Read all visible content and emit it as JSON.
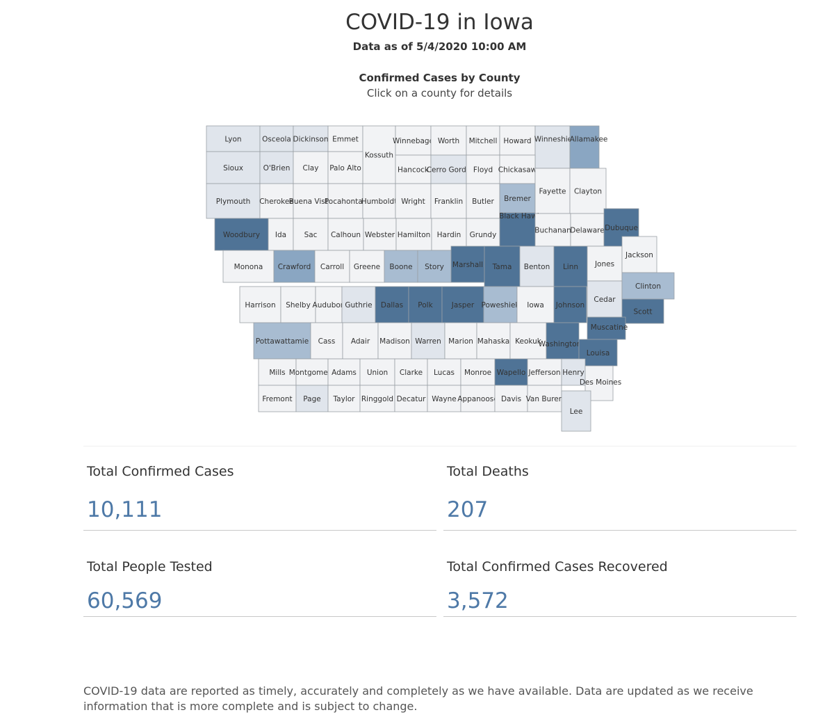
{
  "header": {
    "title": "COVID-19 in Iowa",
    "as_of": "Data as of 5/4/2020 10:00 AM"
  },
  "map": {
    "title": "Confirmed Cases by County",
    "subtitle": "Click on a county for details",
    "colors": {
      "none": "#f2f3f5",
      "low": "#e0e5ec",
      "medium": "#a8bcd1",
      "high": "#8aa6c2",
      "highest": "#4f7396",
      "stroke": "#9aa0a6"
    },
    "counties": [
      {
        "name": "Lyon",
        "level": "low"
      },
      {
        "name": "Osceola",
        "level": "low"
      },
      {
        "name": "Dickinson",
        "level": "low"
      },
      {
        "name": "Emmet",
        "level": "none"
      },
      {
        "name": "Kossuth",
        "level": "none"
      },
      {
        "name": "Winnebago",
        "level": "none"
      },
      {
        "name": "Worth",
        "level": "none"
      },
      {
        "name": "Mitchell",
        "level": "none"
      },
      {
        "name": "Howard",
        "level": "none"
      },
      {
        "name": "Winneshiek",
        "level": "low"
      },
      {
        "name": "Allamakee",
        "level": "high"
      },
      {
        "name": "Sioux",
        "level": "low"
      },
      {
        "name": "O'Brien",
        "level": "low"
      },
      {
        "name": "Clay",
        "level": "none"
      },
      {
        "name": "Palo Alto",
        "level": "none"
      },
      {
        "name": "Hancock",
        "level": "none"
      },
      {
        "name": "Cerro Gordo",
        "level": "low"
      },
      {
        "name": "Floyd",
        "level": "none"
      },
      {
        "name": "Chickasaw",
        "level": "none"
      },
      {
        "name": "Plymouth",
        "level": "low"
      },
      {
        "name": "Cherokee",
        "level": "none"
      },
      {
        "name": "Buena Vista",
        "level": "none"
      },
      {
        "name": "Pocahontas",
        "level": "none"
      },
      {
        "name": "Humboldt",
        "level": "none"
      },
      {
        "name": "Wright",
        "level": "none"
      },
      {
        "name": "Franklin",
        "level": "none"
      },
      {
        "name": "Butler",
        "level": "none"
      },
      {
        "name": "Bremer",
        "level": "medium"
      },
      {
        "name": "Fayette",
        "level": "none"
      },
      {
        "name": "Clayton",
        "level": "none"
      },
      {
        "name": "Woodbury",
        "level": "highest"
      },
      {
        "name": "Ida",
        "level": "none"
      },
      {
        "name": "Sac",
        "level": "none"
      },
      {
        "name": "Calhoun",
        "level": "none"
      },
      {
        "name": "Webster",
        "level": "none"
      },
      {
        "name": "Hamilton",
        "level": "none"
      },
      {
        "name": "Hardin",
        "level": "none"
      },
      {
        "name": "Grundy",
        "level": "none"
      },
      {
        "name": "Black Hawk",
        "level": "highest"
      },
      {
        "name": "Buchanan",
        "level": "none"
      },
      {
        "name": "Delaware",
        "level": "none"
      },
      {
        "name": "Dubuque",
        "level": "highest"
      },
      {
        "name": "Monona",
        "level": "none"
      },
      {
        "name": "Crawford",
        "level": "high"
      },
      {
        "name": "Carroll",
        "level": "none"
      },
      {
        "name": "Greene",
        "level": "none"
      },
      {
        "name": "Boone",
        "level": "medium"
      },
      {
        "name": "Story",
        "level": "medium"
      },
      {
        "name": "Marshall",
        "level": "highest"
      },
      {
        "name": "Tama",
        "level": "highest"
      },
      {
        "name": "Benton",
        "level": "low"
      },
      {
        "name": "Linn",
        "level": "highest"
      },
      {
        "name": "Jones",
        "level": "none"
      },
      {
        "name": "Jackson",
        "level": "none"
      },
      {
        "name": "Harrison",
        "level": "none"
      },
      {
        "name": "Shelby",
        "level": "none"
      },
      {
        "name": "Audubon",
        "level": "none"
      },
      {
        "name": "Guthrie",
        "level": "low"
      },
      {
        "name": "Dallas",
        "level": "highest"
      },
      {
        "name": "Polk",
        "level": "highest"
      },
      {
        "name": "Jasper",
        "level": "highest"
      },
      {
        "name": "Poweshiek",
        "level": "medium"
      },
      {
        "name": "Iowa",
        "level": "none"
      },
      {
        "name": "Johnson",
        "level": "highest"
      },
      {
        "name": "Cedar",
        "level": "low"
      },
      {
        "name": "Clinton",
        "level": "medium"
      },
      {
        "name": "Scott",
        "level": "highest"
      },
      {
        "name": "Muscatine",
        "level": "highest"
      },
      {
        "name": "Pottawattamie",
        "level": "medium"
      },
      {
        "name": "Cass",
        "level": "none"
      },
      {
        "name": "Adair",
        "level": "none"
      },
      {
        "name": "Madison",
        "level": "none"
      },
      {
        "name": "Warren",
        "level": "low"
      },
      {
        "name": "Marion",
        "level": "none"
      },
      {
        "name": "Mahaska",
        "level": "none"
      },
      {
        "name": "Keokuk",
        "level": "none"
      },
      {
        "name": "Washington",
        "level": "highest"
      },
      {
        "name": "Louisa",
        "level": "highest"
      },
      {
        "name": "Mills",
        "level": "none"
      },
      {
        "name": "Montgomery",
        "level": "none"
      },
      {
        "name": "Adams",
        "level": "none"
      },
      {
        "name": "Union",
        "level": "none"
      },
      {
        "name": "Clarke",
        "level": "none"
      },
      {
        "name": "Lucas",
        "level": "none"
      },
      {
        "name": "Monroe",
        "level": "none"
      },
      {
        "name": "Wapello",
        "level": "highest"
      },
      {
        "name": "Jefferson",
        "level": "none"
      },
      {
        "name": "Henry",
        "level": "low"
      },
      {
        "name": "Des Moines",
        "level": "none"
      },
      {
        "name": "Fremont",
        "level": "none"
      },
      {
        "name": "Page",
        "level": "low"
      },
      {
        "name": "Taylor",
        "level": "none"
      },
      {
        "name": "Ringgold",
        "level": "none"
      },
      {
        "name": "Decatur",
        "level": "none"
      },
      {
        "name": "Wayne",
        "level": "none"
      },
      {
        "name": "Appanoose",
        "level": "none"
      },
      {
        "name": "Davis",
        "level": "none"
      },
      {
        "name": "Van Buren",
        "level": "none"
      },
      {
        "name": "Lee",
        "level": "low"
      }
    ]
  },
  "stats": {
    "confirmed": {
      "label": "Total Confirmed Cases",
      "value": "10,111"
    },
    "deaths": {
      "label": "Total Deaths",
      "value": "207"
    },
    "tested": {
      "label": "Total People Tested",
      "value": "60,569"
    },
    "recovered": {
      "label": "Total Confirmed Cases Recovered",
      "value": "3,572"
    }
  },
  "footnote": "COVID-19 data are reported as timely, accurately and completely as we have available.  Data are updated as we receive information that is more complete and is subject to change."
}
